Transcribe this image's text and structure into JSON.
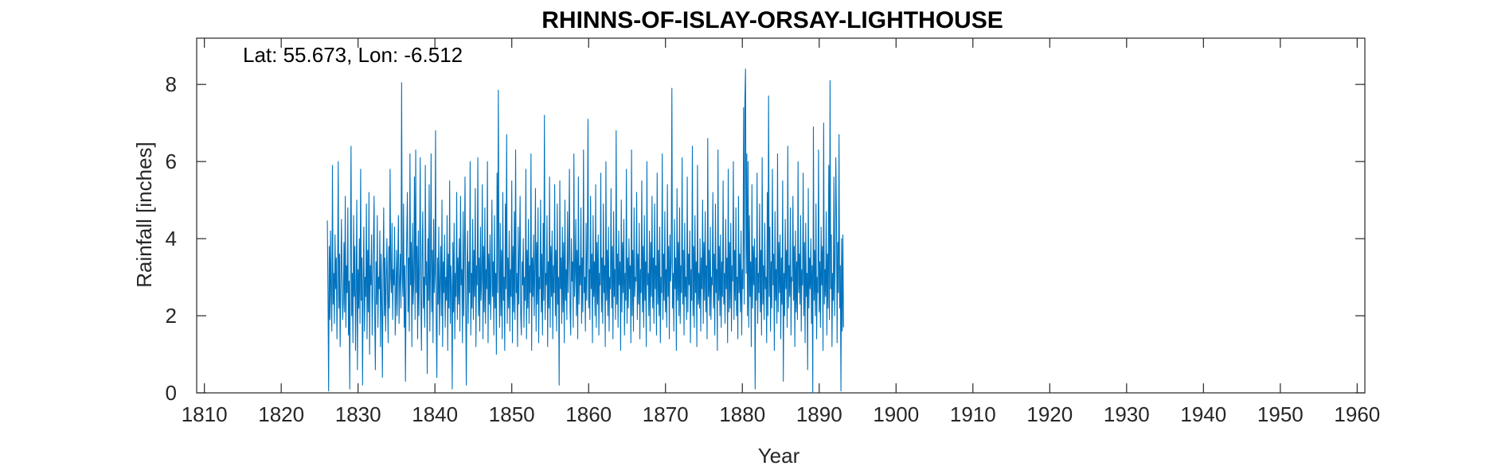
{
  "chart_data": {
    "type": "line",
    "title": "RHINNS-OF-ISLAY-ORSAY-LIGHTHOUSE",
    "annotation": "Lat: 55.673, Lon: -6.512",
    "xlabel": "Year",
    "ylabel": "Rainfall [inches]",
    "xlim": [
      1809,
      1961
    ],
    "ylim": [
      0,
      9.2
    ],
    "xticks": [
      1810,
      1820,
      1830,
      1840,
      1850,
      1860,
      1870,
      1880,
      1890,
      1900,
      1910,
      1920,
      1930,
      1940,
      1950,
      1960
    ],
    "xtick_labels": [
      "1810",
      "1820",
      "1830",
      "1840",
      "1850",
      "1860",
      "1870",
      "1880",
      "1890",
      "1900",
      "1910",
      "1920",
      "1930",
      "1940",
      "1950",
      "1960"
    ],
    "yticks": [
      0,
      2,
      4,
      6,
      8
    ],
    "ytick_labels": [
      "0",
      "2",
      "4",
      "6",
      "8"
    ],
    "grid": false,
    "line_color": "#0072BD",
    "series": [
      {
        "x_start": 1826.0,
        "step": 0.08333,
        "values": [
          4.47,
          2.6,
          0.05,
          3.8,
          1.9,
          4.2,
          2.5,
          1.6,
          5.9,
          2.3,
          3.1,
          1.8,
          4.1,
          2.7,
          3.5,
          1.4,
          2.9,
          6.0,
          2.2,
          3.6,
          1.2,
          2.8,
          4.5,
          3.0,
          1.9,
          2.4,
          3.9,
          2.1,
          5.1,
          1.7,
          3.3,
          2.6,
          4.8,
          1.5,
          2.9,
          0.1,
          3.4,
          6.4,
          2.0,
          3.1,
          1.3,
          4.6,
          2.5,
          3.8,
          1.1,
          2.7,
          5.0,
          0.6,
          3.2,
          2.2,
          4.0,
          1.8,
          5.8,
          2.4,
          3.5,
          0.2,
          2.9,
          4.3,
          1.6,
          3.0,
          2.5,
          4.9,
          1.4,
          3.7,
          2.1,
          5.2,
          1.0,
          3.3,
          2.8,
          4.1,
          1.5,
          2.6,
          3.9,
          5.1,
          2.0,
          0.6,
          3.4,
          2.3,
          4.6,
          1.7,
          3.0,
          2.7,
          4.2,
          1.2,
          3.6,
          2.4,
          0.4,
          3.1,
          4.8,
          2.0,
          3.5,
          1.6,
          2.9,
          4.0,
          2.5,
          1.3,
          3.8,
          2.2,
          5.8,
          3.0,
          2.6,
          4.4,
          1.9,
          3.2,
          2.8,
          4.3,
          1.5,
          2.4,
          3.7,
          2.0,
          3.4,
          4.6,
          1.8,
          2.9,
          3.6,
          2.2,
          8.05,
          3.1,
          2.5,
          4.9,
          1.7,
          3.3,
          0.3,
          2.7,
          4.1,
          5.2,
          2.1,
          3.5,
          1.6,
          6.2,
          2.8,
          3.9,
          1.2,
          4.4,
          2.3,
          3.0,
          5.6,
          1.9,
          6.3,
          2.6,
          3.8,
          1.4,
          4.2,
          2.0,
          3.3,
          6.1,
          2.5,
          1.1,
          3.6,
          4.7,
          2.2,
          3.0,
          1.7,
          5.9,
          2.8,
          3.4,
          0.5,
          4.0,
          2.4,
          5.4,
          1.6,
          3.2,
          6.2,
          2.1,
          3.7,
          1.3,
          4.5,
          2.6,
          3.1,
          6.8,
          1.9,
          0.4,
          3.5,
          2.3,
          4.3,
          1.5,
          2.9,
          3.8,
          2.0,
          5.0,
          1.2,
          3.4,
          2.6,
          4.1,
          1.7,
          3.0,
          2.4,
          4.6,
          1.1,
          3.6,
          2.2,
          5.5,
          1.8,
          3.3,
          2.7,
          0.1,
          3.9,
          2.1,
          4.4,
          1.4,
          3.1,
          2.5,
          5.2,
          1.9,
          3.5,
          2.3,
          4.0,
          1.6,
          5.1,
          2.8,
          3.2,
          1.3,
          4.7,
          2.0,
          3.6,
          5.6,
          2.4,
          0.2,
          3.0,
          4.2,
          1.8,
          3.4,
          2.6,
          6.0,
          1.5,
          3.1,
          2.2,
          4.5,
          1.9,
          3.7,
          2.5,
          5.3,
          1.2,
          3.3,
          2.8,
          6.1,
          2.0,
          3.5,
          1.6,
          4.3,
          2.4,
          3.0,
          5.4,
          1.4,
          3.8,
          2.1,
          4.8,
          1.8,
          3.2,
          2.7,
          6.0,
          1.3,
          3.6,
          2.3,
          4.1,
          1.9,
          2.9,
          5.0,
          2.5,
          3.4,
          1.5,
          4.6,
          2.2,
          3.1,
          1.0,
          5.7,
          2.6,
          7.85,
          3.3,
          1.7,
          4.4,
          2.0,
          3.7,
          1.4,
          5.2,
          2.4,
          3.0,
          1.1,
          4.9,
          2.7,
          6.7,
          1.8,
          3.5,
          2.2,
          4.2,
          1.6,
          3.2,
          2.5,
          5.5,
          1.3,
          3.8,
          2.1,
          4.7,
          1.9,
          6.3,
          2.6,
          3.1,
          1.2,
          4.3,
          2.3,
          3.6,
          5.1,
          2.0,
          1.5,
          3.4,
          2.8,
          4.0,
          1.7,
          3.0,
          2.4,
          5.8,
          1.4,
          3.7,
          2.2,
          4.5,
          1.8,
          3.3,
          2.6,
          6.2,
          1.1,
          3.5,
          2.5,
          4.1,
          2.0,
          3.2,
          5.3,
          1.6,
          3.9,
          2.3,
          4.8,
          1.3,
          3.0,
          2.7,
          5.0,
          2.1,
          3.6,
          1.5,
          4.4,
          2.4,
          7.2,
          1.9,
          3.1,
          2.8,
          4.6,
          1.2,
          3.4,
          2.2,
          5.6,
          1.7,
          3.8,
          2.5,
          4.2,
          1.4,
          3.3,
          2.6,
          5.4,
          2.0,
          3.7,
          1.6,
          4.9,
          2.3,
          3.0,
          0.2,
          5.5,
          2.7,
          3.5,
          1.8,
          4.3,
          2.1,
          3.9,
          1.3,
          5.0,
          2.4,
          3.2,
          1.9,
          4.7,
          2.6,
          3.6,
          5.8,
          2.2,
          1.5,
          4.0,
          2.9,
          3.4,
          1.7,
          6.2,
          2.5,
          3.1,
          4.5,
          2.0,
          3.7,
          1.4,
          5.6,
          2.3,
          3.3,
          2.8,
          4.8,
          1.8,
          3.5,
          2.1,
          6.3,
          2.6,
          3.0,
          1.6,
          4.4,
          2.4,
          3.8,
          7.1,
          2.2,
          3.2,
          1.9,
          5.1,
          2.7,
          3.6,
          1.3,
          4.6,
          2.5,
          3.4,
          2.0,
          5.4,
          1.7,
          3.9,
          2.3,
          4.1,
          1.5,
          3.1,
          2.8,
          5.7,
          2.1,
          3.5,
          1.8,
          4.9,
          2.6,
          3.3,
          1.2,
          6.0,
          2.4,
          3.7,
          2.0,
          4.3,
          1.6,
          3.0,
          2.7,
          5.3,
          2.2,
          3.8,
          1.4,
          4.7,
          2.5,
          3.2,
          1.9,
          6.8,
          2.3,
          3.6,
          1.7,
          4.2,
          2.8,
          3.4,
          1.1,
          5.0,
          2.1,
          3.9,
          2.6,
          4.5,
          1.5,
          3.1,
          2.4,
          5.8,
          1.8,
          3.5,
          2.2,
          4.0,
          2.7,
          3.3,
          1.3,
          6.3,
          2.0,
          3.7,
          1.6,
          4.8,
          2.5,
          3.0,
          2.9,
          5.2,
          1.9,
          3.6,
          2.3,
          4.4,
          1.4,
          3.2,
          2.6,
          5.5,
          2.1,
          3.8,
          1.7,
          4.6,
          2.4,
          3.4,
          1.2,
          6.0,
          2.8,
          3.1,
          2.0,
          4.2,
          1.6,
          3.9,
          2.5,
          5.1,
          2.2,
          3.5,
          1.8,
          4.9,
          2.7,
          3.3,
          1.5,
          5.7,
          2.3,
          3.7,
          2.0,
          4.3,
          1.3,
          3.0,
          2.6,
          6.2,
          1.9,
          3.6,
          2.4,
          4.7,
          2.1,
          3.2,
          1.7,
          5.4,
          2.5,
          3.8,
          1.4,
          4.1,
          2.9,
          3.4,
          7.9,
          2.2,
          3.1,
          1.6,
          4.5,
          2.7,
          3.5,
          1.1,
          5.3,
          2.4,
          3.9,
          2.0,
          4.8,
          1.8,
          3.3,
          2.6,
          6.1,
          2.3,
          3.7,
          1.5,
          4.4,
          2.5,
          3.0,
          1.9,
          5.6,
          2.1,
          3.6,
          2.8,
          4.2,
          1.3,
          3.2,
          2.4,
          6.4,
          2.0,
          3.8,
          1.7,
          4.6,
          2.6,
          3.4,
          1.2,
          5.9,
          2.3,
          3.1,
          2.2,
          4.0,
          1.6,
          3.5,
          2.7,
          5.0,
          1.8,
          3.9,
          2.4,
          4.7,
          2.1,
          3.3,
          1.4,
          6.6,
          2.5,
          3.7,
          2.0,
          4.3,
          1.9,
          3.0,
          2.8,
          5.2,
          2.2,
          3.6,
          1.5,
          4.9,
          2.6,
          3.2,
          1.1,
          6.3,
          2.4,
          3.8,
          2.0,
          4.1,
          1.7,
          3.4,
          2.5,
          5.5,
          2.3,
          3.1,
          1.8,
          4.5,
          2.7,
          3.5,
          1.3,
          5.8,
          2.1,
          3.9,
          2.2,
          4.4,
          1.6,
          3.3,
          2.9,
          6.0,
          1.9,
          3.7,
          2.4,
          4.8,
          2.0,
          3.0,
          1.4,
          5.1,
          2.6,
          3.6,
          2.1,
          4.2,
          1.5,
          3.2,
          2.7,
          7.4,
          2.3,
          7.6,
          8.4,
          3.1,
          6.2,
          2.0,
          6.0,
          1.7,
          4.6,
          2.5,
          3.4,
          1.2,
          5.4,
          2.2,
          3.8,
          2.8,
          4.0,
          0.1,
          3.5,
          2.4,
          5.7,
          1.8,
          3.1,
          2.6,
          4.9,
          2.1,
          3.7,
          1.5,
          6.1,
          2.3,
          3.3,
          1.9,
          4.4,
          2.7,
          3.0,
          1.3,
          5.2,
          2.0,
          7.7,
          2.5,
          4.3,
          1.6,
          3.4,
          2.2,
          5.8,
          2.8,
          3.6,
          1.1,
          4.7,
          2.4,
          3.2,
          1.8,
          6.2,
          2.1,
          3.9,
          2.6,
          4.1,
          1.4,
          3.5,
          2.3,
          5.5,
          0.3,
          3.1,
          2.0,
          4.5,
          2.7,
          3.7,
          1.7,
          6.4,
          2.2,
          3.3,
          2.5,
          4.8,
          1.5,
          3.0,
          2.9,
          5.1,
          2.4,
          3.8,
          1.2,
          4.2,
          2.1,
          3.4,
          1.9,
          6.0,
          2.6,
          3.6,
          2.3,
          4.6,
          1.6,
          3.2,
          2.8,
          5.7,
          2.0,
          3.9,
          1.3,
          4.4,
          2.5,
          3.1,
          0.6,
          5.3,
          2.2,
          3.5,
          2.7,
          4.0,
          1.8,
          3.3,
          0.0,
          6.9,
          2.4,
          3.7,
          2.0,
          4.9,
          1.4,
          3.0,
          2.6,
          6.3,
          2.1,
          3.4,
          1.7,
          4.3,
          2.8,
          3.8,
          1.1,
          7.0,
          2.3,
          3.2,
          2.5,
          4.7,
          1.5,
          3.6,
          2.2,
          5.9,
          1.9,
          8.1,
          2.7,
          4.1,
          1.2,
          3.1,
          2.4,
          5.6,
          2.0,
          3.5,
          6.1,
          4.5,
          1.3,
          3.9,
          2.6,
          6.7,
          2.2,
          3.3,
          0.05,
          4.0,
          1.6,
          4.1,
          1.7
        ]
      }
    ]
  }
}
